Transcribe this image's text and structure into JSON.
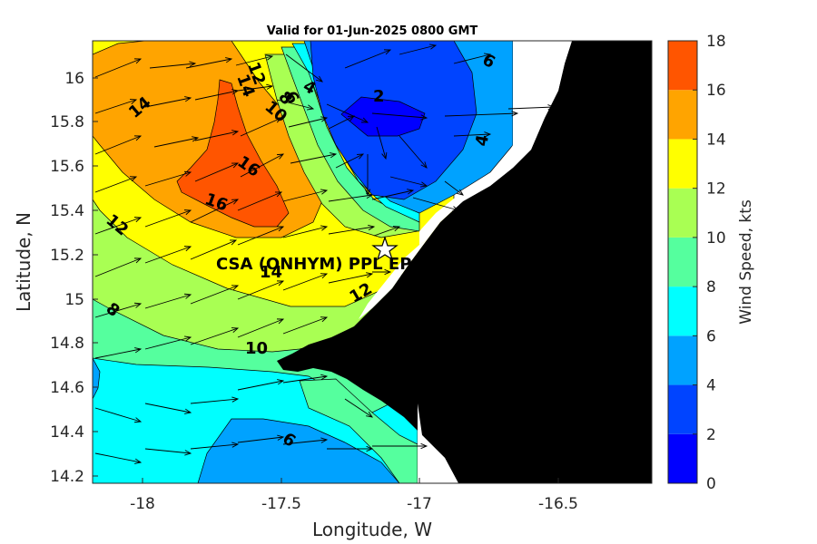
{
  "title": "Valid for 01-Jun-2025 0800 GMT",
  "x_axis": {
    "label": "Longitude, W",
    "ticks": [
      "-18",
      "-17.5",
      "-17",
      "-16.5"
    ]
  },
  "y_axis": {
    "label": "Latitude, N",
    "ticks": [
      "16",
      "15.8",
      "15.6",
      "15.4",
      "15.2",
      "15",
      "14.8",
      "14.6",
      "14.4",
      "14.2"
    ]
  },
  "colorbar": {
    "label": "Wind Speed, kts",
    "ticks": [
      "0",
      "2",
      "4",
      "6",
      "8",
      "10",
      "12",
      "14",
      "16",
      "18"
    ],
    "colors": [
      "#0000ff",
      "#0044ff",
      "#00a2ff",
      "#00ffff",
      "#55ff9e",
      "#a9ff53",
      "#ffff00",
      "#ffa400",
      "#ff5500"
    ]
  },
  "site": {
    "label": "CSA (ONHYM) PPL EP",
    "marker": "star-icon"
  },
  "contour_labels": [
    "14",
    "12",
    "14",
    "6",
    "8",
    "10",
    "4",
    "2",
    "6",
    "4",
    "16",
    "16",
    "12",
    "14",
    "12",
    "8",
    "10",
    "6"
  ],
  "colors": {
    "land": "#000000",
    "background": "#ffffff"
  },
  "chart_data": {
    "type": "heatmap",
    "title": "Valid for 01-Jun-2025 0800 GMT",
    "xlabel": "Longitude, W",
    "ylabel": "Latitude, N",
    "xlim": [
      -18.18,
      -16.18
    ],
    "ylim": [
      14.17,
      16.17
    ],
    "colorbar_range": [
      0,
      18
    ],
    "colorbar_label": "Wind Speed, kts",
    "contour_levels": [
      2,
      4,
      6,
      8,
      10,
      12,
      14,
      16
    ],
    "max_speed_approx": 17,
    "min_speed_approx": 1.5,
    "site": {
      "name": "CSA (ONHYM) PPL EP",
      "lon": -17.12,
      "lat": 15.22
    }
  }
}
